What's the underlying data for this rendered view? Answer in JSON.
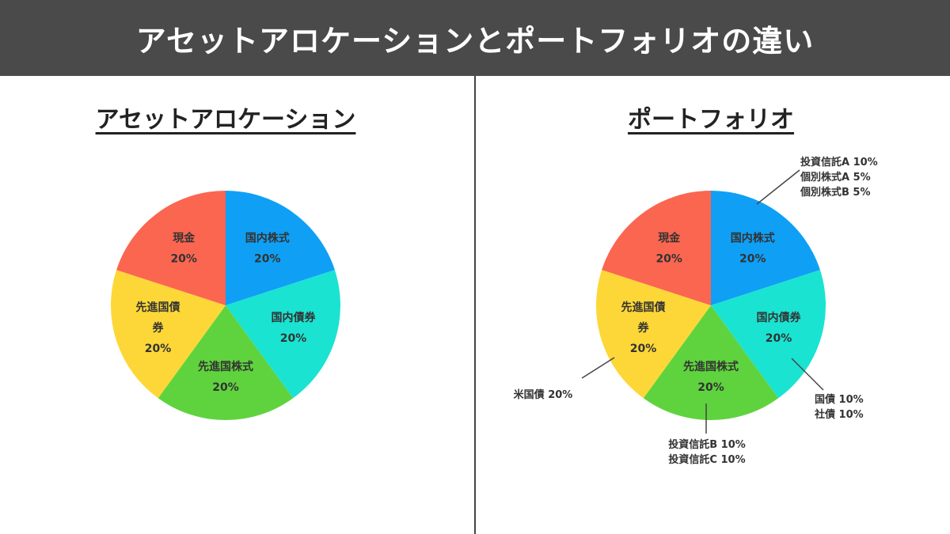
{
  "header": {
    "title": "アセットアロケーションとポートフォリオの違い"
  },
  "colors": {
    "header_bg": "#4a4a4a",
    "domestic_stock": "#0fa0f5",
    "domestic_bond": "#1ae3d2",
    "developed_stock": "#5fd33e",
    "developed_bond": "#fdd737",
    "cash": "#fb6651"
  },
  "chart_data": [
    {
      "type": "pie",
      "title": "アセットアロケーション",
      "slices": [
        {
          "label": "国内株式",
          "value": 20,
          "value_label": "20%",
          "color": "#0fa0f5"
        },
        {
          "label": "国内債券",
          "value": 20,
          "value_label": "20%",
          "color": "#1ae3d2"
        },
        {
          "label": "先進国株式",
          "value": 20,
          "value_label": "20%",
          "color": "#5fd33e"
        },
        {
          "label": "先進国債券",
          "label_lines": [
            "先進国債",
            "券"
          ],
          "value": 20,
          "value_label": "20%",
          "color": "#fdd737"
        },
        {
          "label": "現金",
          "value": 20,
          "value_label": "20%",
          "color": "#fb6651"
        }
      ]
    },
    {
      "type": "pie",
      "title": "ポートフォリオ",
      "slices": [
        {
          "label": "国内株式",
          "value": 20,
          "value_label": "20%",
          "color": "#0fa0f5"
        },
        {
          "label": "国内債券",
          "value": 20,
          "value_label": "20%",
          "color": "#1ae3d2"
        },
        {
          "label": "先進国株式",
          "value": 20,
          "value_label": "20%",
          "color": "#5fd33e"
        },
        {
          "label": "先進国債券",
          "label_lines": [
            "先進国債",
            "券"
          ],
          "value": 20,
          "value_label": "20%",
          "color": "#fdd737"
        },
        {
          "label": "現金",
          "value": 20,
          "value_label": "20%",
          "color": "#fb6651"
        }
      ],
      "annotations": [
        {
          "slice": "国内株式",
          "lines": [
            "投資信託A 10%",
            "個別株式A 5%",
            "個別株式B 5%"
          ]
        },
        {
          "slice": "国内債券",
          "lines": [
            "国債 10%",
            "社債 10%"
          ]
        },
        {
          "slice": "先進国株式",
          "lines": [
            "投資信託B 10%",
            "投資信託C 10%"
          ]
        },
        {
          "slice": "先進国債券",
          "lines": [
            "米国債 20%"
          ]
        }
      ]
    }
  ]
}
